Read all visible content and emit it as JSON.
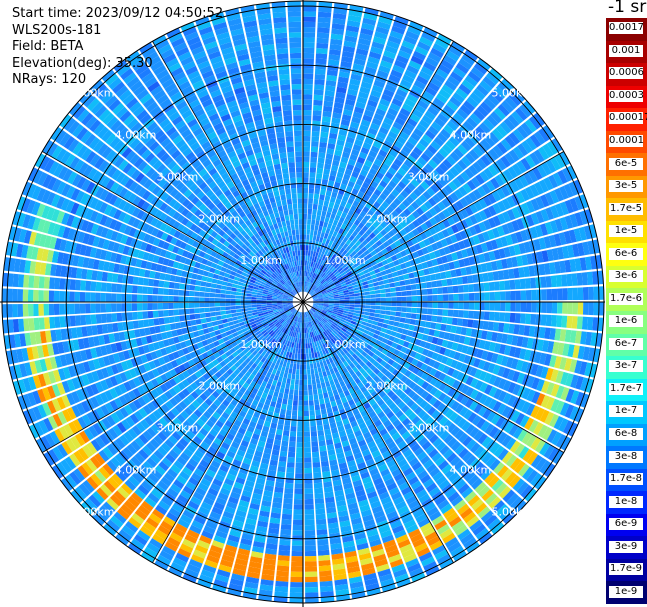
{
  "info": {
    "start_time_label": "Start time:",
    "start_time": "2023/09/12 04:50:52",
    "instrument": "WLS200s-181",
    "field_label": "Field:",
    "field": "BETA",
    "elevation_label": "Elevation(deg):",
    "elevation": "35.30",
    "nrays_label": "NRays:",
    "nrays": "120"
  },
  "chart_data": {
    "type": "heatmap",
    "projection": "polar-ppi",
    "n_rays": 120,
    "range_rings_km": [
      1,
      2,
      3,
      4,
      5
    ],
    "range_ring_labels": [
      "1.00km",
      "2.00km",
      "3.00km",
      "4.00km",
      "5.00km"
    ],
    "grid": true,
    "colorbar": {
      "unit": "-1 sr",
      "labels": [
        "0.0017",
        "0.001",
        "0.0006",
        "0.0003",
        "0.00017",
        "0.0001",
        "6e-5",
        "3e-5",
        "1.7e-5",
        "1e-5",
        "6e-6",
        "3e-6",
        "1.7e-6",
        "1e-6",
        "6e-7",
        "3e-7",
        "1.7e-7",
        "1e-7",
        "6e-8",
        "3e-8",
        "1.7e-8",
        "1e-8",
        "6e-9",
        "3e-9",
        "1.7e-9",
        "1e-9"
      ],
      "colors": [
        "#8b0000",
        "#a80000",
        "#cc0000",
        "#ee0000",
        "#ff2000",
        "#ff4a00",
        "#ff7000",
        "#ff9800",
        "#ffbc00",
        "#ffe000",
        "#ffff10",
        "#d8ff30",
        "#b0ff58",
        "#88ff80",
        "#60ffa8",
        "#38ffd0",
        "#10f0f8",
        "#00c8ff",
        "#00a0ff",
        "#0078ff",
        "#0050ff",
        "#0028ff",
        "#0000f0",
        "#0000c8",
        "#0000a0",
        "#000070"
      ]
    }
  }
}
